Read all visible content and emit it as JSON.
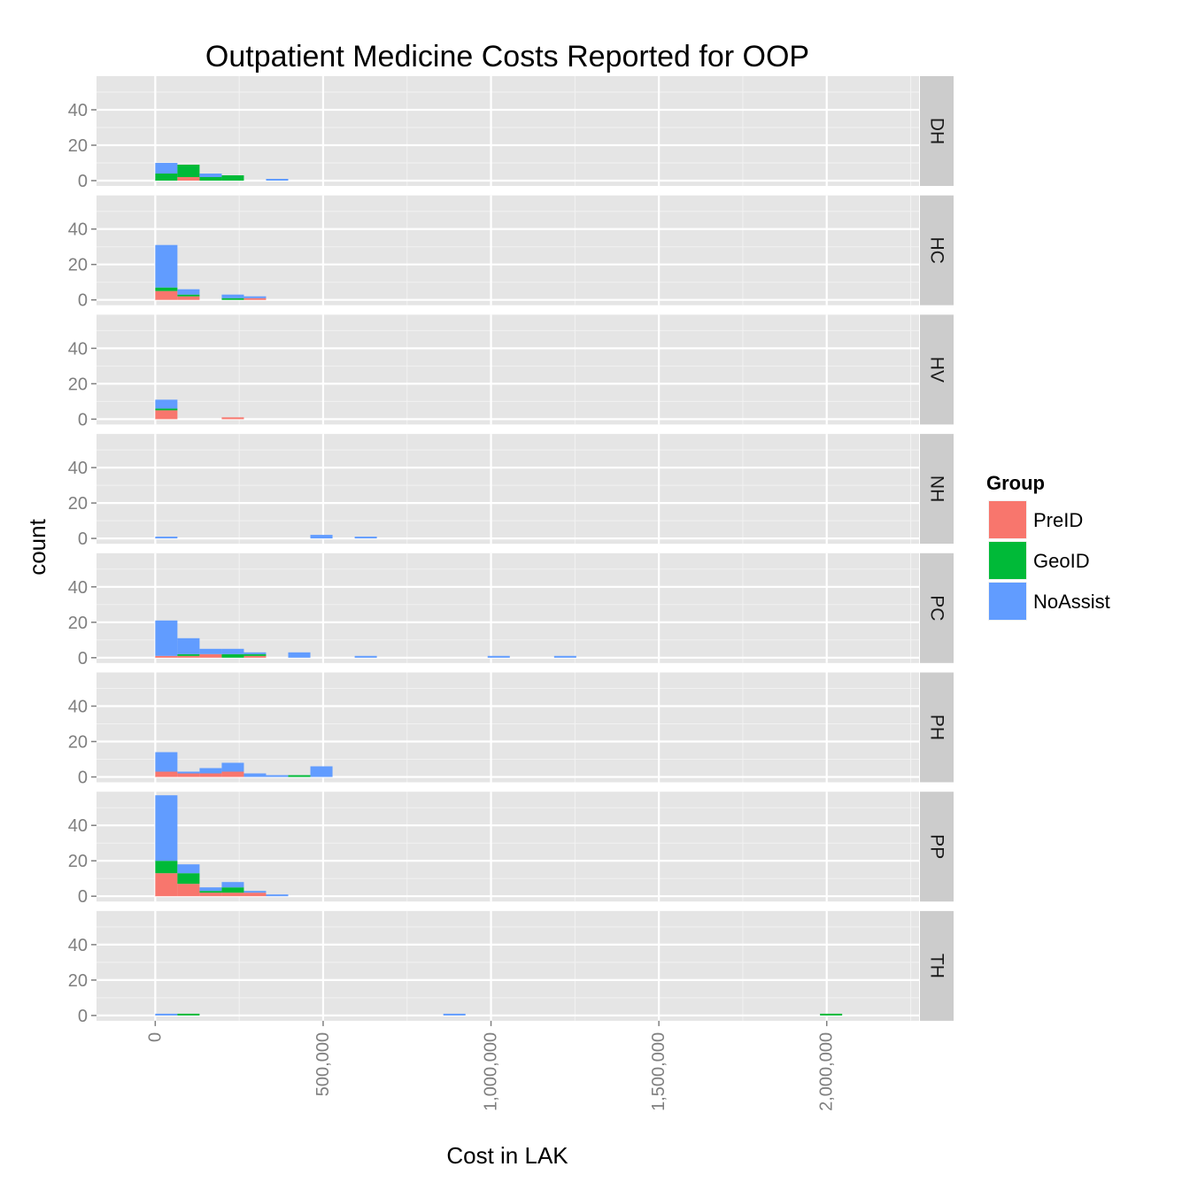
{
  "chart_data": {
    "type": "bar",
    "subtype": "stacked-histogram-facets",
    "title": "Outpatient Medicine Costs Reported for OOP",
    "xlabel": "Cost in LAK",
    "ylabel": "count",
    "xlim": [
      -175000,
      2275000
    ],
    "ylim": [
      0,
      58
    ],
    "bin_width": 66000,
    "x_ticks": [
      0,
      500000,
      1000000,
      1500000,
      2000000
    ],
    "x_tick_labels": [
      "0",
      "500,000",
      "1,000,000",
      "1,500,000",
      "2,000,000"
    ],
    "y_ticks": [
      0,
      20,
      40
    ],
    "y_tick_labels": [
      "0",
      "20",
      "40"
    ],
    "grid": true,
    "legend": {
      "title": "Group",
      "position": "right",
      "entries": [
        "PreID",
        "GeoID",
        "NoAssist"
      ]
    },
    "colors": {
      "PreID": "#F8766D",
      "GeoID": "#00BA38",
      "NoAssist": "#619CFF",
      "panel_bg": "#E5E5E5",
      "strip_bg": "#CCCCCC",
      "grid": "#FFFFFF"
    },
    "stack_order": [
      "PreID",
      "GeoID",
      "NoAssist"
    ],
    "facets": [
      {
        "label": "DH",
        "bins": [
          {
            "x": 0,
            "PreID": 0,
            "GeoID": 4,
            "NoAssist": 6
          },
          {
            "x": 66000,
            "PreID": 2,
            "GeoID": 7,
            "NoAssist": 0
          },
          {
            "x": 132000,
            "PreID": 0,
            "GeoID": 2,
            "NoAssist": 2
          },
          {
            "x": 198000,
            "PreID": 0,
            "GeoID": 3,
            "NoAssist": 0
          },
          {
            "x": 330000,
            "PreID": 0,
            "GeoID": 0,
            "NoAssist": 1
          }
        ]
      },
      {
        "label": "HC",
        "bins": [
          {
            "x": 0,
            "PreID": 5,
            "GeoID": 2,
            "NoAssist": 24
          },
          {
            "x": 66000,
            "PreID": 2,
            "GeoID": 1,
            "NoAssist": 3
          },
          {
            "x": 198000,
            "PreID": 0,
            "GeoID": 1,
            "NoAssist": 2
          },
          {
            "x": 264000,
            "PreID": 1,
            "GeoID": 0,
            "NoAssist": 1
          }
        ]
      },
      {
        "label": "HV",
        "bins": [
          {
            "x": 0,
            "PreID": 5,
            "GeoID": 1,
            "NoAssist": 5
          },
          {
            "x": 198000,
            "PreID": 1,
            "GeoID": 0,
            "NoAssist": 0
          }
        ]
      },
      {
        "label": "NH",
        "bins": [
          {
            "x": 0,
            "PreID": 0,
            "GeoID": 0,
            "NoAssist": 1
          },
          {
            "x": 462000,
            "PreID": 0,
            "GeoID": 0,
            "NoAssist": 2
          },
          {
            "x": 594000,
            "PreID": 0,
            "GeoID": 0,
            "NoAssist": 1
          }
        ]
      },
      {
        "label": "PC",
        "bins": [
          {
            "x": 0,
            "PreID": 1,
            "GeoID": 0,
            "NoAssist": 20
          },
          {
            "x": 66000,
            "PreID": 1,
            "GeoID": 1,
            "NoAssist": 9
          },
          {
            "x": 132000,
            "PreID": 2,
            "GeoID": 0,
            "NoAssist": 3
          },
          {
            "x": 198000,
            "PreID": 0,
            "GeoID": 2,
            "NoAssist": 3
          },
          {
            "x": 264000,
            "PreID": 1,
            "GeoID": 1,
            "NoAssist": 1
          },
          {
            "x": 396000,
            "PreID": 0,
            "GeoID": 0,
            "NoAssist": 3
          },
          {
            "x": 594000,
            "PreID": 0,
            "GeoID": 0,
            "NoAssist": 1
          },
          {
            "x": 990000,
            "PreID": 0,
            "GeoID": 0,
            "NoAssist": 1
          },
          {
            "x": 1188000,
            "PreID": 0,
            "GeoID": 0,
            "NoAssist": 1
          }
        ]
      },
      {
        "label": "PH",
        "bins": [
          {
            "x": 0,
            "PreID": 3,
            "GeoID": 0,
            "NoAssist": 11
          },
          {
            "x": 66000,
            "PreID": 2,
            "GeoID": 0,
            "NoAssist": 1
          },
          {
            "x": 132000,
            "PreID": 2,
            "GeoID": 0,
            "NoAssist": 3
          },
          {
            "x": 198000,
            "PreID": 3,
            "GeoID": 0,
            "NoAssist": 5
          },
          {
            "x": 264000,
            "PreID": 0,
            "GeoID": 0,
            "NoAssist": 2
          },
          {
            "x": 330000,
            "PreID": 0,
            "GeoID": 0,
            "NoAssist": 1
          },
          {
            "x": 396000,
            "PreID": 0,
            "GeoID": 1,
            "NoAssist": 0
          },
          {
            "x": 462000,
            "PreID": 0,
            "GeoID": 0,
            "NoAssist": 6
          }
        ]
      },
      {
        "label": "PP",
        "bins": [
          {
            "x": 0,
            "PreID": 13,
            "GeoID": 7,
            "NoAssist": 37
          },
          {
            "x": 66000,
            "PreID": 7,
            "GeoID": 6,
            "NoAssist": 5
          },
          {
            "x": 132000,
            "PreID": 2,
            "GeoID": 1,
            "NoAssist": 2
          },
          {
            "x": 198000,
            "PreID": 2,
            "GeoID": 3,
            "NoAssist": 3
          },
          {
            "x": 264000,
            "PreID": 2,
            "GeoID": 0,
            "NoAssist": 1
          },
          {
            "x": 330000,
            "PreID": 0,
            "GeoID": 0,
            "NoAssist": 1
          }
        ]
      },
      {
        "label": "TH",
        "bins": [
          {
            "x": 0,
            "PreID": 0,
            "GeoID": 0,
            "NoAssist": 1
          },
          {
            "x": 66000,
            "PreID": 0,
            "GeoID": 1,
            "NoAssist": 0
          },
          {
            "x": 858000,
            "PreID": 0,
            "GeoID": 0,
            "NoAssist": 1
          },
          {
            "x": 1980000,
            "PreID": 0,
            "GeoID": 1,
            "NoAssist": 0
          }
        ]
      }
    ]
  }
}
